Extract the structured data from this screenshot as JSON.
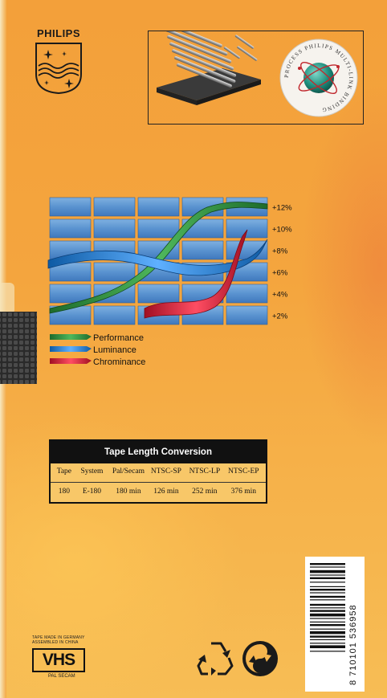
{
  "brand": {
    "name": "PHILIPS"
  },
  "chart_data": {
    "type": "line",
    "title": "",
    "y_tick_labels": [
      "+12%",
      "+10%",
      "+8%",
      "+6%",
      "+4%",
      "+2%"
    ],
    "series": [
      {
        "name": "Performance",
        "color": "#2e8a3a"
      },
      {
        "name": "Luminance",
        "color": "#2a76c8"
      },
      {
        "name": "Chrominance",
        "color": "#d6213a"
      }
    ],
    "legend_position": "bottom-left",
    "grid": true
  },
  "table": {
    "title": "Tape Length Conversion",
    "headers": [
      "Tape",
      "System",
      "Pal/Secam",
      "NTSC-SP",
      "NTSC-LP",
      "NTSC-EP"
    ],
    "rows": [
      [
        "180",
        "E-180",
        "180 min",
        "126 min",
        "252 min",
        "376 min"
      ]
    ]
  },
  "barcode": {
    "digits": "8 710101 536958"
  },
  "fine_print": {
    "line1": "TAPE MADE IN GERMANY",
    "line2": "ASSEMBLED IN CHINA"
  },
  "vhs": {
    "logo": "VHS",
    "system": "PAL SECAM"
  },
  "seal": {
    "text": "PROCESS PHILIPS MULTI-LINK BINDING"
  },
  "icons": [
    "philips-shield-icon",
    "recycle-icon",
    "green-dot-icon",
    "atom-icon"
  ]
}
